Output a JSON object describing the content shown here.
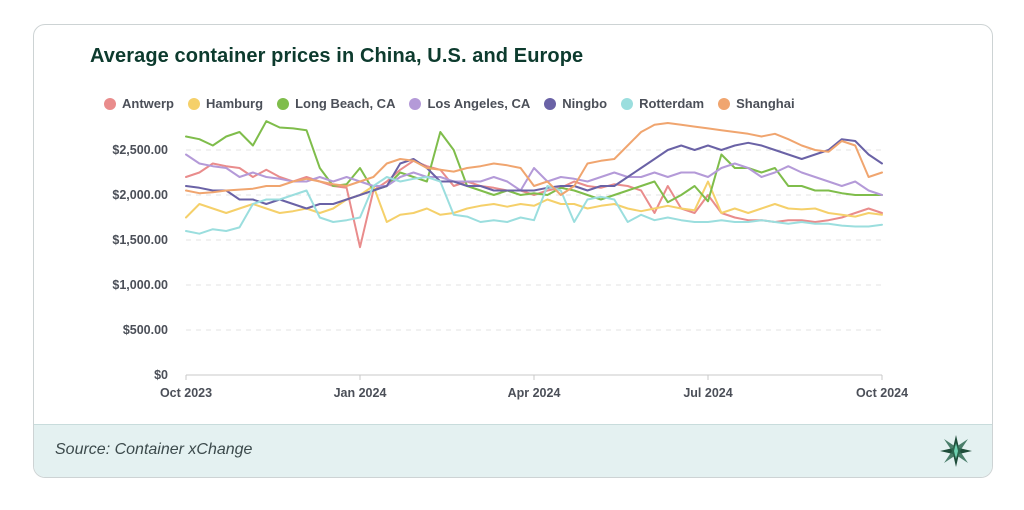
{
  "title": "Average container prices in China, U.S. and Europe",
  "source": "Source: Container xChange",
  "colors": {
    "Antwerp": "#e98c8c",
    "Hamburg": "#f5d06a",
    "Long Beach, CA": "#7fbd4b",
    "Los Angeles, CA": "#b49ad8",
    "Ningbo": "#6a62a6",
    "Rotterdam": "#9bdede",
    "Shanghai": "#f0a56f"
  },
  "chart_data": {
    "type": "line",
    "title": "Average container prices in China, U.S. and Europe",
    "xlabel": "",
    "ylabel": "",
    "ylim": [
      0,
      2800
    ],
    "y_ticks": [
      "$0",
      "$500.00",
      "$1,000.00",
      "$1,500.00",
      "$2,000.00",
      "$2,500.00"
    ],
    "x_ticks": [
      "Oct 2023",
      "Jan 2024",
      "Apr 2024",
      "Jul 2024",
      "Oct 2024"
    ],
    "x_index_range": [
      0,
      52
    ],
    "series": [
      {
        "name": "Antwerp",
        "values": [
          2200,
          2250,
          2350,
          2320,
          2300,
          2200,
          2280,
          2200,
          2150,
          2200,
          2150,
          2100,
          2080,
          1420,
          2050,
          2150,
          2280,
          2380,
          2320,
          2280,
          2100,
          2150,
          2100,
          2080,
          2050,
          2050,
          2000,
          2050,
          2080,
          2150,
          2100,
          2080,
          2120,
          2100,
          2050,
          1800,
          2100,
          1850,
          1800,
          2000,
          1800,
          1750,
          1720,
          1720,
          1700,
          1720,
          1720,
          1700,
          1720,
          1750,
          1800,
          1850,
          1800
        ]
      },
      {
        "name": "Hamburg",
        "values": [
          1750,
          1900,
          1850,
          1800,
          1850,
          1900,
          1850,
          1800,
          1820,
          1850,
          1800,
          1850,
          1950,
          2000,
          2100,
          1700,
          1780,
          1800,
          1850,
          1780,
          1800,
          1850,
          1880,
          1900,
          1870,
          1900,
          1880,
          1950,
          1900,
          1900,
          1850,
          1880,
          1900,
          1850,
          1820,
          1850,
          1880,
          1850,
          1830,
          2150,
          1800,
          1850,
          1800,
          1850,
          1900,
          1850,
          1840,
          1850,
          1800,
          1780,
          1760,
          1800,
          1780
        ]
      },
      {
        "name": "Long Beach, CA",
        "values": [
          2650,
          2620,
          2550,
          2650,
          2700,
          2550,
          2820,
          2750,
          2740,
          2720,
          2300,
          2100,
          2120,
          2300,
          2050,
          2100,
          2250,
          2200,
          2150,
          2700,
          2500,
          2100,
          2050,
          2000,
          2050,
          2000,
          2020,
          2000,
          2080,
          2050,
          2000,
          1950,
          2000,
          2050,
          2100,
          2150,
          1920,
          2000,
          2100,
          1930,
          2450,
          2300,
          2300,
          2250,
          2300,
          2100,
          2100,
          2050,
          2050,
          2020,
          2000,
          2000,
          2000
        ]
      },
      {
        "name": "Los Angeles, CA",
        "values": [
          2450,
          2350,
          2320,
          2300,
          2200,
          2250,
          2200,
          2180,
          2150,
          2150,
          2200,
          2150,
          2200,
          2150,
          2100,
          2100,
          2200,
          2250,
          2200,
          2200,
          2150,
          2150,
          2150,
          2200,
          2150,
          2050,
          2300,
          2150,
          2200,
          2180,
          2150,
          2200,
          2250,
          2200,
          2200,
          2250,
          2200,
          2250,
          2250,
          2200,
          2300,
          2350,
          2300,
          2200,
          2250,
          2320,
          2250,
          2200,
          2150,
          2100,
          2150,
          2050,
          2000
        ]
      },
      {
        "name": "Ningbo",
        "values": [
          2100,
          2080,
          2050,
          2050,
          1950,
          1950,
          1900,
          1950,
          1900,
          1850,
          1900,
          1900,
          1950,
          2000,
          2050,
          2100,
          2350,
          2400,
          2300,
          2150,
          2150,
          2100,
          2100,
          2050,
          2050,
          2050,
          2050,
          2080,
          2100,
          2100,
          2050,
          2100,
          2100,
          2200,
          2300,
          2400,
          2500,
          2550,
          2500,
          2550,
          2500,
          2550,
          2580,
          2550,
          2500,
          2450,
          2400,
          2450,
          2500,
          2620,
          2600,
          2450,
          2350
        ]
      },
      {
        "name": "Rotterdam",
        "values": [
          1600,
          1570,
          1620,
          1600,
          1640,
          1900,
          1950,
          1950,
          2000,
          2050,
          1750,
          1700,
          1720,
          1750,
          2100,
          2200,
          2150,
          2180,
          2200,
          2150,
          1780,
          1760,
          1700,
          1720,
          1700,
          1750,
          1720,
          2100,
          2050,
          1700,
          1950,
          1980,
          1950,
          1700,
          1780,
          1720,
          1750,
          1720,
          1700,
          1700,
          1720,
          1700,
          1700,
          1720,
          1700,
          1680,
          1700,
          1680,
          1680,
          1660,
          1650,
          1650,
          1670
        ]
      },
      {
        "name": "Shanghai",
        "values": [
          2050,
          2020,
          2030,
          2050,
          2060,
          2070,
          2100,
          2100,
          2150,
          2180,
          2150,
          2120,
          2100,
          2150,
          2200,
          2350,
          2400,
          2380,
          2300,
          2280,
          2260,
          2300,
          2320,
          2350,
          2330,
          2300,
          2100,
          2150,
          2000,
          2100,
          2350,
          2380,
          2400,
          2550,
          2700,
          2780,
          2800,
          2780,
          2760,
          2740,
          2720,
          2700,
          2680,
          2650,
          2680,
          2620,
          2550,
          2500,
          2480,
          2600,
          2550,
          2200,
          2250
        ]
      }
    ]
  }
}
